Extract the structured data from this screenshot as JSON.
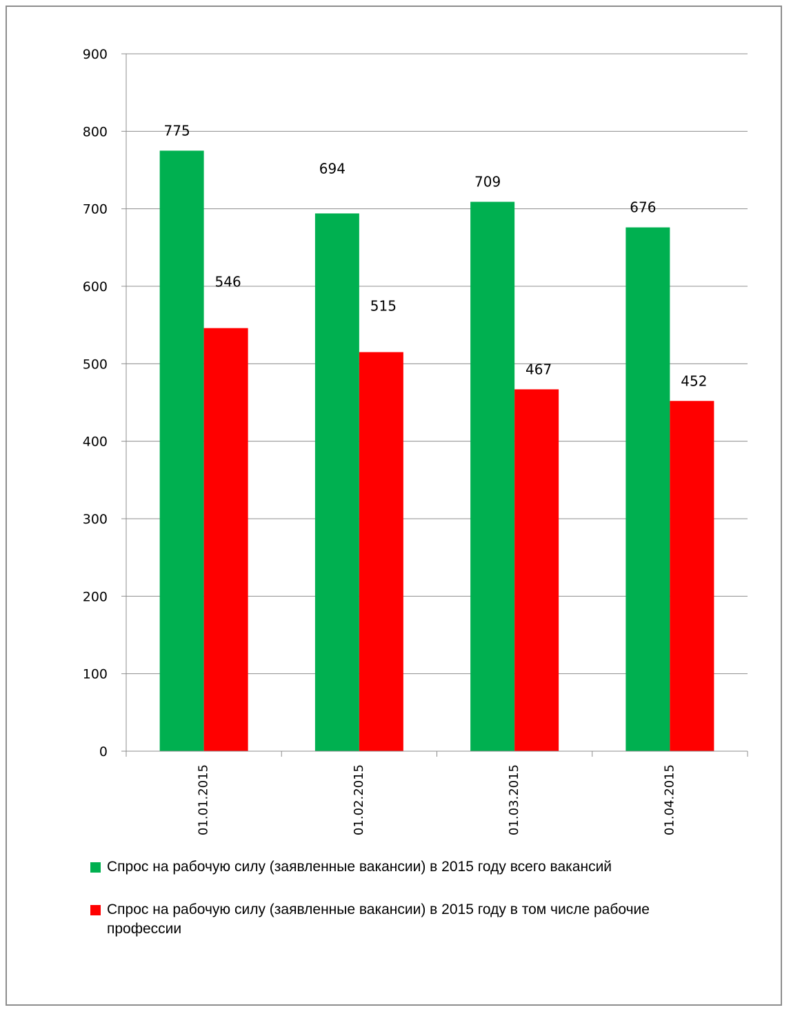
{
  "chart_data": {
    "type": "bar",
    "categories": [
      "01.01.2015",
      "01.02.2015",
      "01.03.2015",
      "01.04.2015"
    ],
    "series": [
      {
        "name": "Спрос на рабочую силу (заявленные вакансии) в 2015 году всего вакансий",
        "values": [
          775,
          694,
          709,
          676
        ],
        "color": "#00b050"
      },
      {
        "name": "Спрос на рабочую силу (заявленные вакансии) в 2015 году в том числе рабочие профессии",
        "values": [
          546,
          515,
          467,
          452
        ],
        "color": "#ff0000"
      }
    ],
    "yticks": [
      0,
      100,
      200,
      300,
      400,
      500,
      600,
      700,
      800,
      900
    ],
    "ylim": [
      0,
      900
    ],
    "grid": true,
    "legend": "bottom"
  }
}
